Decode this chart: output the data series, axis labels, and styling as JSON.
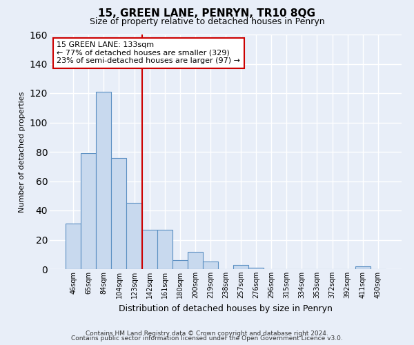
{
  "title": "15, GREEN LANE, PENRYN, TR10 8QG",
  "subtitle": "Size of property relative to detached houses in Penryn",
  "xlabel": "Distribution of detached houses by size in Penryn",
  "ylabel": "Number of detached properties",
  "bar_labels": [
    "46sqm",
    "65sqm",
    "84sqm",
    "104sqm",
    "123sqm",
    "142sqm",
    "161sqm",
    "180sqm",
    "200sqm",
    "219sqm",
    "238sqm",
    "257sqm",
    "276sqm",
    "296sqm",
    "315sqm",
    "334sqm",
    "353sqm",
    "372sqm",
    "392sqm",
    "411sqm",
    "430sqm"
  ],
  "bar_values": [
    31,
    79,
    121,
    76,
    45,
    27,
    27,
    6,
    12,
    5,
    0,
    3,
    1,
    0,
    0,
    0,
    0,
    0,
    0,
    2,
    0
  ],
  "bar_color": "#c8d9ee",
  "bar_edge_color": "#5a8fc2",
  "ylim": [
    0,
    160
  ],
  "yticks": [
    0,
    20,
    40,
    60,
    80,
    100,
    120,
    140,
    160
  ],
  "vline_x_index": 4.5,
  "vline_color": "#cc0000",
  "annotation_title": "15 GREEN LANE: 133sqm",
  "annotation_line1": "← 77% of detached houses are smaller (329)",
  "annotation_line2": "23% of semi-detached houses are larger (97) →",
  "annotation_box_color": "#ffffff",
  "annotation_box_edge": "#cc0000",
  "footer1": "Contains HM Land Registry data © Crown copyright and database right 2024.",
  "footer2": "Contains public sector information licensed under the Open Government Licence v3.0.",
  "background_color": "#e8eef8",
  "grid_color": "#dce6f5",
  "plot_bg_color": "#e8eef8"
}
